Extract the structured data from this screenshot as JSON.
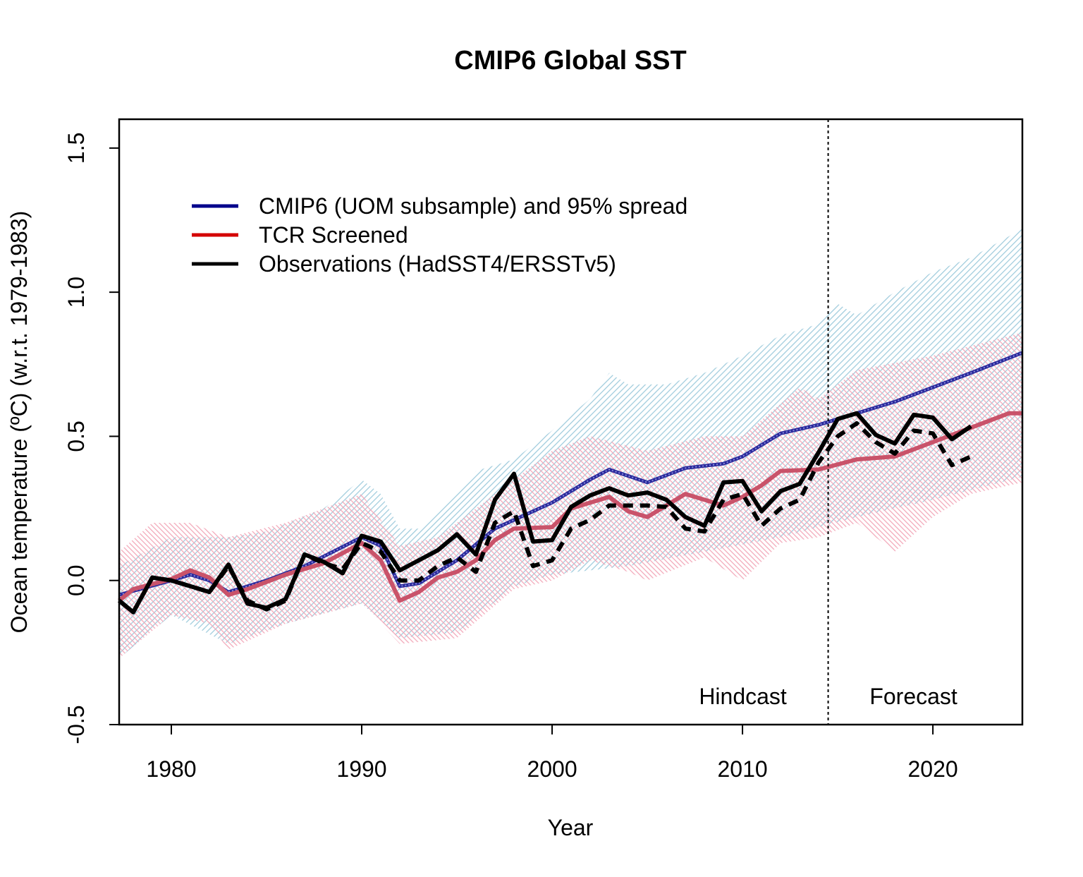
{
  "chart_data": {
    "type": "line",
    "title": "CMIP6 Global SST",
    "xlabel": "Year",
    "ylabel": "Ocean temperature (ºC) (w.r.t. 1979-1983)",
    "xlim": [
      1977.26,
      2024.7
    ],
    "ylim": [
      -0.5,
      1.6
    ],
    "xticks": [
      1980,
      1990,
      2000,
      2010,
      2020
    ],
    "yticks": [
      -0.5,
      0.0,
      0.5,
      1.0,
      1.5
    ],
    "ytick_labels": [
      "-0.5",
      "0.0",
      "0.5",
      "1.0",
      "1.5"
    ],
    "grid": false,
    "legend_position": "top-left",
    "divider_year": 2014.5,
    "annotations": {
      "hindcast": "Hindcast",
      "forecast": "Forecast"
    },
    "legend": [
      {
        "label": "CMIP6 (UOM subsample) and 95% spread",
        "color": "#00008b"
      },
      {
        "label": "TCR Screened",
        "color": "#d40000"
      },
      {
        "label": "Observations (HadSST4/ERSSTv5)",
        "color": "#000000"
      }
    ],
    "bands": [
      {
        "name": "CMIP6 95% spread",
        "color": "#9ecbdc",
        "upper": [
          [
            1977.26,
            0.05
          ],
          [
            1980,
            0.15
          ],
          [
            1983,
            0.15
          ],
          [
            1985,
            0.17
          ],
          [
            1988,
            0.25
          ],
          [
            1990,
            0.35
          ],
          [
            1991,
            0.3
          ],
          [
            1992,
            0.18
          ],
          [
            1993,
            0.18
          ],
          [
            1995,
            0.3
          ],
          [
            1996,
            0.38
          ],
          [
            1998,
            0.42
          ],
          [
            2000,
            0.52
          ],
          [
            2002,
            0.63
          ],
          [
            2003,
            0.72
          ],
          [
            2004,
            0.68
          ],
          [
            2006,
            0.68
          ],
          [
            2008,
            0.72
          ],
          [
            2010,
            0.78
          ],
          [
            2012,
            0.85
          ],
          [
            2014,
            0.89
          ],
          [
            2015,
            0.96
          ],
          [
            2016,
            0.92
          ],
          [
            2018,
            1.0
          ],
          [
            2020,
            1.07
          ],
          [
            2022,
            1.12
          ],
          [
            2024.7,
            1.22
          ]
        ],
        "lower": [
          [
            1977.26,
            -0.27
          ],
          [
            1980,
            -0.12
          ],
          [
            1983,
            -0.22
          ],
          [
            1986,
            -0.15
          ],
          [
            1990,
            -0.08
          ],
          [
            1992,
            -0.2
          ],
          [
            1995,
            -0.18
          ],
          [
            1998,
            -0.02
          ],
          [
            2000,
            0.02
          ],
          [
            2004,
            0.05
          ],
          [
            2008,
            0.1
          ],
          [
            2012,
            0.15
          ],
          [
            2016,
            0.22
          ],
          [
            2020,
            0.28
          ],
          [
            2024.7,
            0.36
          ]
        ]
      },
      {
        "name": "TCR Screened spread",
        "color": "#f2a7b8",
        "upper": [
          [
            1977.26,
            0.1
          ],
          [
            1979,
            0.2
          ],
          [
            1981,
            0.2
          ],
          [
            1983,
            0.15
          ],
          [
            1986,
            0.2
          ],
          [
            1990,
            0.3
          ],
          [
            1992,
            0.12
          ],
          [
            1994,
            0.15
          ],
          [
            1997,
            0.3
          ],
          [
            2000,
            0.45
          ],
          [
            2002,
            0.5
          ],
          [
            2005,
            0.45
          ],
          [
            2008,
            0.5
          ],
          [
            2010,
            0.5
          ],
          [
            2013,
            0.67
          ],
          [
            2014,
            0.63
          ],
          [
            2016,
            0.73
          ],
          [
            2020,
            0.78
          ],
          [
            2024.7,
            0.86
          ]
        ],
        "lower": [
          [
            1977.26,
            -0.27
          ],
          [
            1980,
            -0.12
          ],
          [
            1982,
            -0.15
          ],
          [
            1983,
            -0.24
          ],
          [
            1986,
            -0.15
          ],
          [
            1990,
            -0.08
          ],
          [
            1992,
            -0.22
          ],
          [
            1995,
            -0.2
          ],
          [
            1998,
            -0.03
          ],
          [
            2000,
            0.0
          ],
          [
            2002,
            0.07
          ],
          [
            2004,
            0.03
          ],
          [
            2005,
            0.0
          ],
          [
            2008,
            0.08
          ],
          [
            2010,
            0.0
          ],
          [
            2012,
            0.13
          ],
          [
            2014,
            0.15
          ],
          [
            2016,
            0.2
          ],
          [
            2018,
            0.1
          ],
          [
            2020,
            0.22
          ],
          [
            2022,
            0.3
          ],
          [
            2024.7,
            0.34
          ]
        ]
      }
    ],
    "series": [
      {
        "name": "CMIP6 (UOM subsample)",
        "color": "#2a2a9c",
        "style": "solid",
        "points": [
          [
            1977.26,
            -0.05
          ],
          [
            1980,
            0.0
          ],
          [
            1981,
            0.02
          ],
          [
            1982,
            0.0
          ],
          [
            1983,
            -0.04
          ],
          [
            1985,
            0.0
          ],
          [
            1987,
            0.05
          ],
          [
            1990,
            0.15
          ],
          [
            1991,
            0.12
          ],
          [
            1992,
            -0.02
          ],
          [
            1993,
            -0.01
          ],
          [
            1995,
            0.07
          ],
          [
            1997,
            0.18
          ],
          [
            2000,
            0.27
          ],
          [
            2002,
            0.35
          ],
          [
            2003,
            0.385
          ],
          [
            2005,
            0.34
          ],
          [
            2007,
            0.39
          ],
          [
            2009,
            0.405
          ],
          [
            2010,
            0.43
          ],
          [
            2012,
            0.51
          ],
          [
            2014,
            0.54
          ],
          [
            2016,
            0.58
          ],
          [
            2018,
            0.62
          ],
          [
            2020,
            0.67
          ],
          [
            2022,
            0.72
          ],
          [
            2024.7,
            0.79
          ]
        ]
      },
      {
        "name": "TCR Screened",
        "color": "#c9536a",
        "style": "solid",
        "points": [
          [
            1977.26,
            -0.07
          ],
          [
            1978,
            -0.03
          ],
          [
            1980,
            0.005
          ],
          [
            1981,
            0.035
          ],
          [
            1982,
            0.01
          ],
          [
            1983,
            -0.05
          ],
          [
            1984,
            -0.03
          ],
          [
            1986,
            0.02
          ],
          [
            1988,
            0.06
          ],
          [
            1990,
            0.13
          ],
          [
            1991,
            0.07
          ],
          [
            1992,
            -0.07
          ],
          [
            1993,
            -0.04
          ],
          [
            1994,
            0.01
          ],
          [
            1995,
            0.03
          ],
          [
            1996,
            0.07
          ],
          [
            1997,
            0.14
          ],
          [
            1998,
            0.18
          ],
          [
            2000,
            0.185
          ],
          [
            2001,
            0.25
          ],
          [
            2003,
            0.29
          ],
          [
            2004,
            0.24
          ],
          [
            2005,
            0.22
          ],
          [
            2007,
            0.3
          ],
          [
            2009,
            0.26
          ],
          [
            2010,
            0.29
          ],
          [
            2011,
            0.33
          ],
          [
            2012,
            0.38
          ],
          [
            2014,
            0.385
          ],
          [
            2016,
            0.42
          ],
          [
            2018,
            0.43
          ],
          [
            2020,
            0.48
          ],
          [
            2022,
            0.53
          ],
          [
            2024,
            0.58
          ],
          [
            2024.7,
            0.58
          ]
        ]
      },
      {
        "name": "Observations (ERSSTv5)",
        "color": "#000000",
        "style": "dashed",
        "points": [
          [
            1977.26,
            -0.07
          ],
          [
            1978,
            -0.11
          ],
          [
            1979,
            0.01
          ],
          [
            1980,
            0.0
          ],
          [
            1981,
            -0.02
          ],
          [
            1982,
            -0.04
          ],
          [
            1983,
            0.05
          ],
          [
            1984,
            -0.07
          ],
          [
            1985,
            -0.1
          ],
          [
            1986,
            -0.07
          ],
          [
            1987,
            0.09
          ],
          [
            1988,
            0.06
          ],
          [
            1989,
            0.04
          ],
          [
            1990,
            0.13
          ],
          [
            1991,
            0.1
          ],
          [
            1992,
            0.0
          ],
          [
            1993,
            0.0
          ],
          [
            1994,
            0.05
          ],
          [
            1995,
            0.08
          ],
          [
            1996,
            0.03
          ],
          [
            1997,
            0.2
          ],
          [
            1998,
            0.24
          ],
          [
            1999,
            0.05
          ],
          [
            2000,
            0.07
          ],
          [
            2001,
            0.18
          ],
          [
            2002,
            0.21
          ],
          [
            2003,
            0.26
          ],
          [
            2004,
            0.26
          ],
          [
            2005,
            0.26
          ],
          [
            2006,
            0.255
          ],
          [
            2007,
            0.18
          ],
          [
            2008,
            0.17
          ],
          [
            2009,
            0.28
          ],
          [
            2010,
            0.3
          ],
          [
            2011,
            0.19
          ],
          [
            2012,
            0.25
          ],
          [
            2013,
            0.28
          ],
          [
            2014,
            0.41
          ],
          [
            2015,
            0.5
          ],
          [
            2016,
            0.545
          ],
          [
            2017,
            0.48
          ],
          [
            2018,
            0.44
          ],
          [
            2019,
            0.52
          ],
          [
            2020,
            0.51
          ],
          [
            2021,
            0.4
          ],
          [
            2022,
            0.43
          ]
        ]
      },
      {
        "name": "Observations (HadSST4)",
        "color": "#000000",
        "style": "solid",
        "points": [
          [
            1977.26,
            -0.07
          ],
          [
            1978,
            -0.11
          ],
          [
            1979,
            0.01
          ],
          [
            1980,
            0.0
          ],
          [
            1981,
            -0.02
          ],
          [
            1982,
            -0.04
          ],
          [
            1983,
            0.055
          ],
          [
            1984,
            -0.08
          ],
          [
            1985,
            -0.095
          ],
          [
            1986,
            -0.065
          ],
          [
            1987,
            0.09
          ],
          [
            1988,
            0.065
          ],
          [
            1989,
            0.025
          ],
          [
            1990,
            0.155
          ],
          [
            1991,
            0.135
          ],
          [
            1992,
            0.035
          ],
          [
            1993,
            0.07
          ],
          [
            1994,
            0.105
          ],
          [
            1995,
            0.16
          ],
          [
            1996,
            0.09
          ],
          [
            1997,
            0.28
          ],
          [
            1998,
            0.37
          ],
          [
            1999,
            0.135
          ],
          [
            2000,
            0.14
          ],
          [
            2001,
            0.255
          ],
          [
            2002,
            0.295
          ],
          [
            2003,
            0.32
          ],
          [
            2004,
            0.295
          ],
          [
            2005,
            0.305
          ],
          [
            2006,
            0.28
          ],
          [
            2007,
            0.22
          ],
          [
            2008,
            0.19
          ],
          [
            2009,
            0.34
          ],
          [
            2010,
            0.345
          ],
          [
            2011,
            0.24
          ],
          [
            2012,
            0.31
          ],
          [
            2013,
            0.335
          ],
          [
            2014,
            0.445
          ],
          [
            2015,
            0.56
          ],
          [
            2016,
            0.58
          ],
          [
            2017,
            0.505
          ],
          [
            2018,
            0.475
          ],
          [
            2019,
            0.575
          ],
          [
            2020,
            0.565
          ],
          [
            2021,
            0.49
          ],
          [
            2022,
            0.535
          ]
        ]
      }
    ]
  }
}
